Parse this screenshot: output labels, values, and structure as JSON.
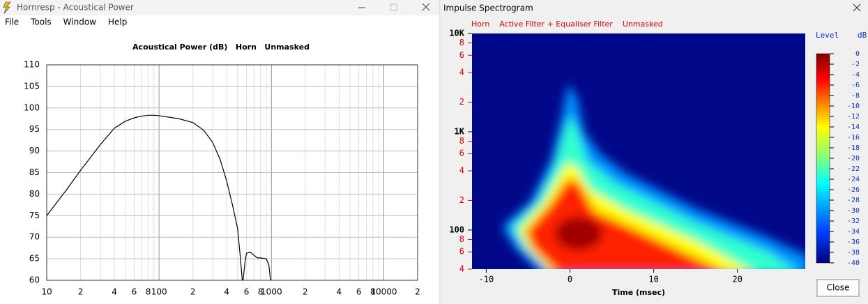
{
  "left_window": {
    "title": "Hornresp - Acoustical Power",
    "menu": [
      "File",
      "Tools",
      "Window",
      "Help"
    ]
  },
  "right_window": {
    "title": "Impulse Spectrogram",
    "subtitles": [
      "Horn",
      "Active Filter + Equaliser Filter",
      "Unmasked"
    ],
    "button": "Close"
  },
  "chart_data": [
    {
      "type": "line",
      "title": "Acoustical Power (dB)   Horn   Unmasked",
      "log_x": true,
      "grid": true,
      "color": "#000000",
      "x": [
        10,
        15,
        20,
        30,
        40,
        50,
        60,
        70,
        80,
        90,
        100,
        150,
        200,
        250,
        300,
        350,
        400,
        450,
        500,
        530,
        550,
        555,
        560,
        580,
        600,
        650,
        700,
        750,
        800,
        900,
        950,
        980
      ],
      "values": [
        75,
        81,
        85.5,
        91.5,
        95.3,
        96.9,
        97.7,
        98.1,
        98.3,
        98.3,
        98.2,
        97.5,
        96.6,
        94.8,
        92,
        88,
        83,
        77.5,
        72,
        65,
        60,
        null,
        60,
        64,
        66.3,
        66.5,
        65.8,
        65.2,
        65.2,
        65,
        63.5,
        60
      ],
      "xlim": [
        10,
        20000
      ],
      "xticks": [
        10,
        {
          "value": 20,
          "label": "2"
        },
        {
          "value": 40,
          "label": "4"
        },
        {
          "value": 60,
          "label": "6"
        },
        {
          "value": 80,
          "label": "8"
        },
        100,
        {
          "value": 200,
          "label": "2"
        },
        {
          "value": 400,
          "label": "4"
        },
        {
          "value": 600,
          "label": "6"
        },
        {
          "value": 800,
          "label": "8"
        },
        1000,
        {
          "value": 2000,
          "label": "2"
        },
        {
          "value": 4000,
          "label": "4"
        },
        {
          "value": 6000,
          "label": "6"
        },
        {
          "value": 8000,
          "label": "8"
        },
        10000,
        {
          "value": 20000,
          "label": "2"
        }
      ],
      "ylim": [
        60,
        110
      ],
      "yticks": [
        60,
        65,
        70,
        75,
        80,
        85,
        90,
        95,
        100,
        105,
        110
      ]
    },
    {
      "type": "spectrogram",
      "xlabel": "Time (msec)",
      "log_y": true,
      "xlim": [
        -11.7,
        28.1
      ],
      "xticks": [
        -10,
        0,
        10,
        20
      ],
      "ylim": [
        40,
        10000
      ],
      "yticks": [
        {
          "value": 10000,
          "label": "10K"
        },
        {
          "value": 8000,
          "label": "8"
        },
        {
          "value": 6000,
          "label": "6"
        },
        {
          "value": 4000,
          "label": "4"
        },
        {
          "value": 2000,
          "label": "2"
        },
        {
          "value": 1000,
          "label": "1K"
        },
        {
          "value": 800,
          "label": "8"
        },
        {
          "value": 600,
          "label": "6"
        },
        {
          "value": 400,
          "label": "4"
        },
        {
          "value": 200,
          "label": "2"
        },
        100,
        {
          "value": 80,
          "label": "8"
        },
        {
          "value": 60,
          "label": "6"
        },
        {
          "value": 40,
          "label": "4"
        }
      ],
      "colorbar": {
        "label": "Level",
        "unit": "dB",
        "range": [
          -40,
          0
        ],
        "ticks": [
          0,
          -2,
          -4,
          -6,
          -8,
          -10,
          -12,
          -14,
          -16,
          -18,
          -20,
          -22,
          -24,
          -26,
          -28,
          -30,
          -32,
          -34,
          -36,
          -38,
          -40
        ]
      }
    }
  ]
}
